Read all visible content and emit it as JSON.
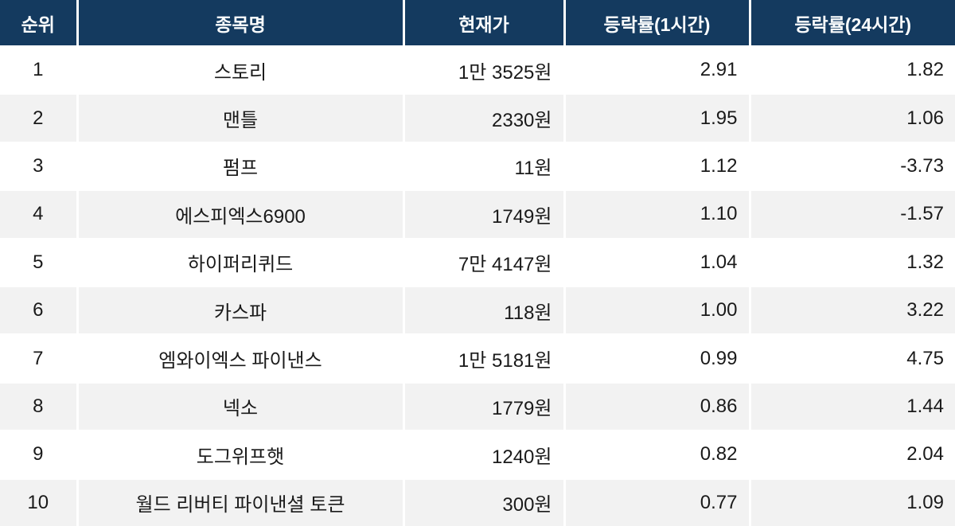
{
  "chart_data": {
    "type": "table",
    "columns": [
      "순위",
      "종목명",
      "현재가",
      "등락률(1시간)",
      "등락률(24시간)"
    ],
    "rows": [
      [
        1,
        "스토리",
        "1만 3525원",
        2.91,
        1.82
      ],
      [
        2,
        "맨틀",
        "2330원",
        1.95,
        1.06
      ],
      [
        3,
        "펌프",
        "11원",
        1.12,
        -3.73
      ],
      [
        4,
        "에스피엑스6900",
        "1749원",
        1.1,
        -1.57
      ],
      [
        5,
        "하이퍼리퀴드",
        "7만 4147원",
        1.04,
        1.32
      ],
      [
        6,
        "카스파",
        "118원",
        1.0,
        3.22
      ],
      [
        7,
        "엠와이엑스 파이낸스",
        "1만 5181원",
        0.99,
        4.75
      ],
      [
        8,
        "넥소",
        "1779원",
        0.86,
        1.44
      ],
      [
        9,
        "도그위프햇",
        "1240원",
        0.82,
        2.04
      ],
      [
        10,
        "월드 리버티 파이낸셜 토큰",
        "300원",
        0.77,
        1.09
      ]
    ],
    "title": "",
    "legend": "none",
    "grid": "white 2-3px dividers between cells, alternating row shading"
  },
  "table": {
    "columns": [
      {
        "key": "rank",
        "label": "순위"
      },
      {
        "key": "name",
        "label": "종목명"
      },
      {
        "key": "price",
        "label": "현재가"
      },
      {
        "key": "change_1h",
        "label": "등락률(1시간)"
      },
      {
        "key": "change_24h",
        "label": "등락률(24시간)"
      }
    ],
    "rows": [
      {
        "rank": "1",
        "name": "스토리",
        "price": "1만 3525원",
        "change_1h": "2.91",
        "change_24h": "1.82"
      },
      {
        "rank": "2",
        "name": "맨틀",
        "price": "2330원",
        "change_1h": "1.95",
        "change_24h": "1.06"
      },
      {
        "rank": "3",
        "name": "펌프",
        "price": "11원",
        "change_1h": "1.12",
        "change_24h": "-3.73"
      },
      {
        "rank": "4",
        "name": "에스피엑스6900",
        "price": "1749원",
        "change_1h": "1.10",
        "change_24h": "-1.57"
      },
      {
        "rank": "5",
        "name": "하이퍼리퀴드",
        "price": "7만 4147원",
        "change_1h": "1.04",
        "change_24h": "1.32"
      },
      {
        "rank": "6",
        "name": "카스파",
        "price": "118원",
        "change_1h": "1.00",
        "change_24h": "3.22"
      },
      {
        "rank": "7",
        "name": "엠와이엑스 파이낸스",
        "price": "1만 5181원",
        "change_1h": "0.99",
        "change_24h": "4.75"
      },
      {
        "rank": "8",
        "name": "넥소",
        "price": "1779원",
        "change_1h": "0.86",
        "change_24h": "1.44"
      },
      {
        "rank": "9",
        "name": "도그위프햇",
        "price": "1240원",
        "change_1h": "0.82",
        "change_24h": "2.04"
      },
      {
        "rank": "10",
        "name": "월드 리버티 파이낸셜 토큰",
        "price": "300원",
        "change_1h": "0.77",
        "change_24h": "1.09"
      }
    ]
  },
  "colors": {
    "header_bg": "#143a5f",
    "header_text": "#fbfdfe",
    "body_text": "#1a1a1a",
    "row_bg": "#ffffff",
    "row_alt_bg": "#f2f2f2",
    "divider": "#ffffff"
  }
}
